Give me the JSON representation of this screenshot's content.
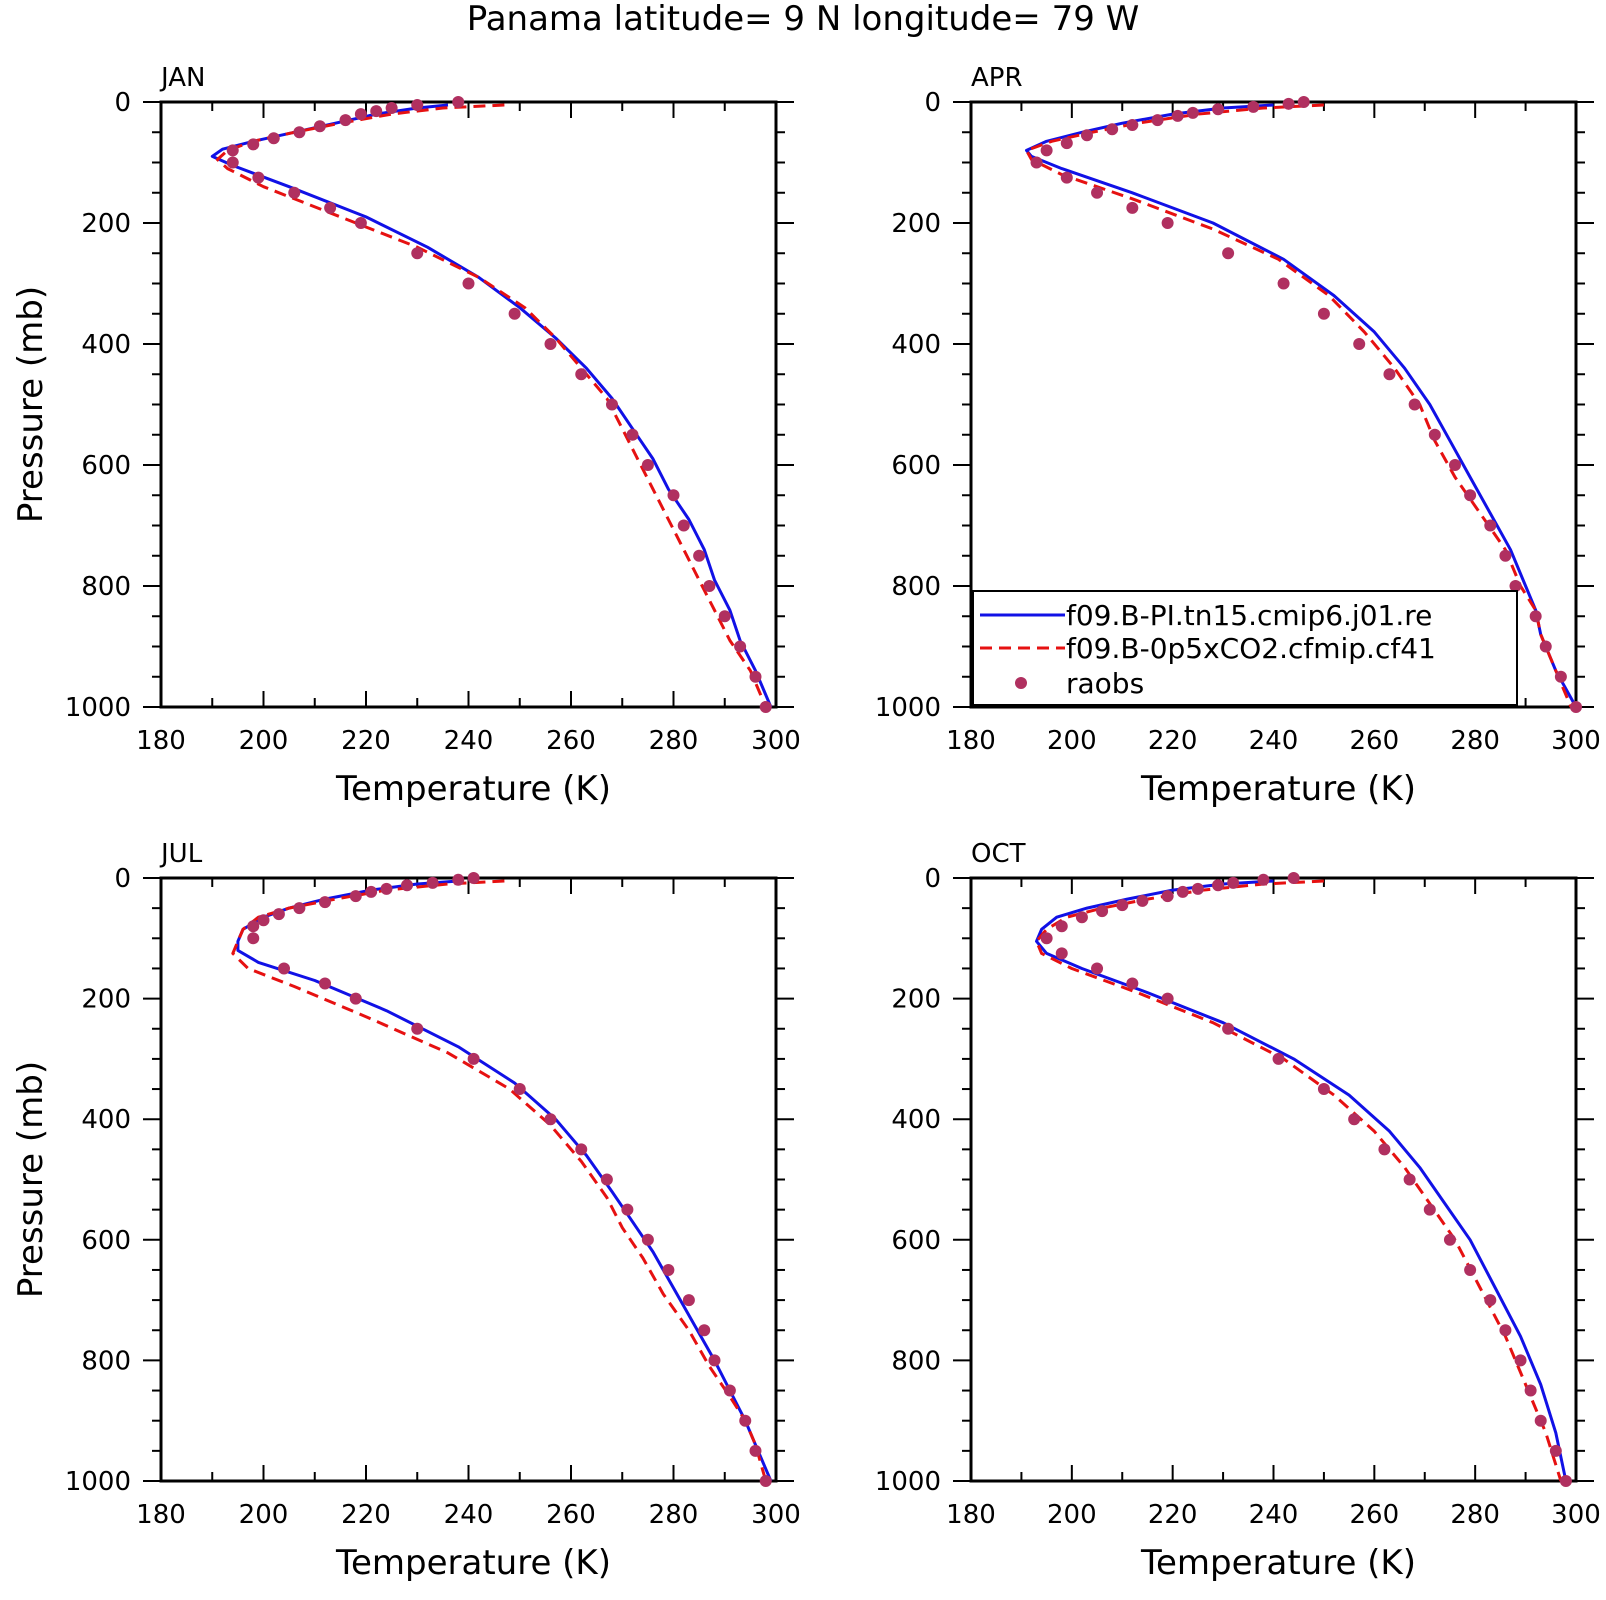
{
  "title": "Panama  latitude= 9 N longitude= 79 W",
  "colors": {
    "model1": "#1111e6",
    "model2": "#e61111",
    "raobs": "#b03060",
    "axis": "#000000"
  },
  "legend": {
    "placement": "lower-left of APR panel",
    "entries": [
      {
        "label": "f09.B-PI.tn15.cmip6.j01.re",
        "style": "solid blue line"
      },
      {
        "label": "f09.B-0p5xCO2.cfmip.cf41",
        "style": "dashed red line"
      },
      {
        "label": "raobs",
        "style": "filled circle"
      }
    ]
  },
  "chart_data": [
    {
      "type": "line",
      "panel": "JAN",
      "xlabel": "Temperature (K)",
      "ylabel": "Pressure (mb)",
      "xlim": [
        180,
        300
      ],
      "ylim": [
        1000,
        0
      ],
      "xticks": [
        180,
        200,
        220,
        240,
        260,
        280,
        300
      ],
      "yticks": [
        0,
        200,
        400,
        600,
        800,
        1000
      ],
      "series": [
        {
          "name": "f09.B-PI.tn15.cmip6.j01.re",
          "x": [
            236,
            230,
            222,
            214,
            206,
            198,
            192,
            190,
            194,
            205,
            220,
            232,
            242,
            250,
            257,
            263,
            268,
            272,
            276,
            279,
            283,
            286,
            288,
            291,
            293,
            296,
            299
          ],
          "y": [
            5,
            10,
            20,
            35,
            50,
            65,
            78,
            90,
            105,
            140,
            190,
            240,
            290,
            340,
            390,
            440,
            490,
            540,
            590,
            640,
            690,
            740,
            790,
            840,
            890,
            940,
            1000
          ]
        },
        {
          "name": "f09.B-0p5xCO2.cfmip.cf41",
          "x": [
            247,
            235,
            225,
            215,
            206,
            198,
            193,
            191,
            193,
            200,
            215,
            230,
            242,
            251,
            257,
            262,
            267,
            270,
            273,
            276,
            279,
            282,
            285,
            288,
            291,
            295,
            298
          ],
          "y": [
            5,
            10,
            20,
            35,
            50,
            65,
            80,
            95,
            110,
            140,
            190,
            240,
            290,
            340,
            390,
            440,
            490,
            540,
            590,
            640,
            690,
            740,
            790,
            840,
            890,
            940,
            1000
          ]
        },
        {
          "name": "raobs",
          "x": [
            238,
            230,
            225,
            222,
            219,
            216,
            211,
            207,
            202,
            198,
            194,
            194,
            199,
            206,
            213,
            219,
            230,
            240,
            249,
            256,
            262,
            268,
            272,
            275,
            280,
            282,
            285,
            287,
            290,
            293,
            296,
            298
          ],
          "y": [
            0,
            5,
            10,
            15,
            20,
            30,
            40,
            50,
            60,
            70,
            80,
            100,
            125,
            150,
            175,
            200,
            250,
            300,
            350,
            400,
            450,
            500,
            550,
            600,
            650,
            700,
            750,
            800,
            850,
            900,
            950,
            1000
          ]
        }
      ]
    },
    {
      "type": "line",
      "panel": "APR",
      "xlabel": "Temperature (K)",
      "ylabel": "",
      "xlim": [
        180,
        300
      ],
      "ylim": [
        1000,
        0
      ],
      "xticks": [
        180,
        200,
        220,
        240,
        260,
        280,
        300
      ],
      "yticks": [
        0,
        200,
        400,
        600,
        800,
        1000
      ],
      "series": [
        {
          "name": "f09.B-PI.tn15.cmip6.j01.re",
          "x": [
            240,
            230,
            220,
            210,
            202,
            195,
            191,
            192,
            198,
            212,
            228,
            242,
            252,
            260,
            266,
            271,
            275,
            279,
            283,
            287,
            290,
            292,
            293,
            296,
            300
          ],
          "y": [
            5,
            10,
            20,
            35,
            50,
            65,
            80,
            90,
            110,
            150,
            200,
            260,
            320,
            380,
            440,
            500,
            560,
            620,
            680,
            740,
            800,
            840,
            880,
            940,
            1000
          ]
        },
        {
          "name": "f09.B-0p5xCO2.cfmip.cf41",
          "x": [
            250,
            238,
            225,
            213,
            204,
            196,
            191,
            192,
            198,
            212,
            228,
            241,
            251,
            258,
            264,
            269,
            272,
            276,
            281,
            286,
            289,
            292,
            293,
            296,
            299
          ],
          "y": [
            5,
            10,
            20,
            35,
            50,
            65,
            80,
            95,
            120,
            160,
            210,
            260,
            320,
            380,
            440,
            500,
            560,
            620,
            680,
            740,
            800,
            840,
            880,
            940,
            1000
          ]
        },
        {
          "name": "raobs",
          "x": [
            246,
            243,
            236,
            229,
            224,
            221,
            217,
            212,
            208,
            203,
            199,
            195,
            193,
            199,
            205,
            212,
            219,
            231,
            242,
            250,
            257,
            263,
            268,
            272,
            276,
            279,
            283,
            286,
            288,
            292,
            294,
            297,
            300
          ],
          "y": [
            0,
            3,
            8,
            12,
            18,
            23,
            30,
            38,
            45,
            55,
            68,
            80,
            100,
            125,
            150,
            175,
            200,
            250,
            300,
            350,
            400,
            450,
            500,
            550,
            600,
            650,
            700,
            750,
            800,
            850,
            900,
            950,
            1000
          ]
        }
      ]
    },
    {
      "type": "line",
      "panel": "JUL",
      "xlabel": "Temperature (K)",
      "ylabel": "Pressure (mb)",
      "xlim": [
        180,
        300
      ],
      "ylim": [
        1000,
        0
      ],
      "xticks": [
        180,
        200,
        220,
        240,
        260,
        280,
        300
      ],
      "yticks": [
        0,
        200,
        400,
        600,
        800,
        1000
      ],
      "series": [
        {
          "name": "f09.B-PI.tn15.cmip6.j01.re",
          "x": [
            238,
            230,
            221,
            212,
            205,
            200,
            196,
            195,
            195,
            199,
            210,
            224,
            238,
            249,
            257,
            263,
            268,
            272,
            276,
            280,
            284,
            288,
            291,
            294,
            296,
            299
          ],
          "y": [
            5,
            10,
            20,
            35,
            50,
            65,
            85,
            105,
            120,
            140,
            170,
            220,
            280,
            340,
            400,
            460,
            520,
            570,
            620,
            680,
            740,
            800,
            850,
            900,
            940,
            1000
          ]
        },
        {
          "name": "f09.B-0p5xCO2.cfmip.cf41",
          "x": [
            247,
            236,
            224,
            214,
            205,
            199,
            196,
            195,
            194,
            197,
            206,
            220,
            236,
            248,
            256,
            262,
            267,
            270,
            274,
            278,
            283,
            287,
            291,
            294,
            296,
            298
          ],
          "y": [
            5,
            10,
            20,
            35,
            50,
            65,
            85,
            105,
            125,
            150,
            180,
            230,
            290,
            350,
            410,
            470,
            530,
            580,
            630,
            690,
            750,
            810,
            860,
            900,
            940,
            1000
          ]
        },
        {
          "name": "raobs",
          "x": [
            241,
            238,
            233,
            228,
            224,
            221,
            218,
            212,
            207,
            203,
            200,
            198,
            198,
            204,
            212,
            218,
            230,
            241,
            250,
            256,
            262,
            267,
            271,
            275,
            279,
            283,
            286,
            288,
            291,
            294,
            296,
            298
          ],
          "y": [
            0,
            3,
            8,
            12,
            18,
            23,
            30,
            40,
            50,
            60,
            70,
            80,
            100,
            150,
            175,
            200,
            250,
            300,
            350,
            400,
            450,
            500,
            550,
            600,
            650,
            700,
            750,
            800,
            850,
            900,
            950,
            1000
          ]
        }
      ]
    },
    {
      "type": "line",
      "panel": "OCT",
      "xlabel": "Temperature (K)",
      "ylabel": "",
      "xlim": [
        180,
        300
      ],
      "ylim": [
        1000,
        0
      ],
      "xticks": [
        180,
        200,
        220,
        240,
        260,
        280,
        300
      ],
      "yticks": [
        0,
        200,
        400,
        600,
        800,
        1000
      ],
      "series": [
        {
          "name": "f09.B-PI.tn15.cmip6.j01.re",
          "x": [
            240,
            230,
            220,
            211,
            203,
            197,
            194,
            193,
            195,
            202,
            215,
            230,
            244,
            255,
            263,
            269,
            274,
            279,
            284,
            289,
            293,
            296,
            298
          ],
          "y": [
            5,
            10,
            20,
            35,
            50,
            65,
            85,
            105,
            125,
            150,
            190,
            240,
            300,
            360,
            420,
            480,
            540,
            600,
            680,
            760,
            840,
            920,
            1000
          ]
        },
        {
          "name": "f09.B-0p5xCO2.cfmip.cf41",
          "x": [
            250,
            238,
            226,
            215,
            206,
            199,
            195,
            193,
            194,
            200,
            213,
            228,
            242,
            252,
            260,
            266,
            271,
            276,
            281,
            286,
            290,
            294,
            297
          ],
          "y": [
            5,
            10,
            20,
            35,
            50,
            65,
            85,
            105,
            125,
            150,
            190,
            240,
            300,
            360,
            420,
            480,
            540,
            600,
            680,
            760,
            840,
            920,
            1000
          ]
        },
        {
          "name": "raobs",
          "x": [
            244,
            238,
            232,
            229,
            225,
            222,
            219,
            214,
            210,
            206,
            202,
            198,
            195,
            198,
            205,
            212,
            219,
            231,
            241,
            250,
            256,
            262,
            267,
            271,
            275,
            279,
            283,
            286,
            289,
            291,
            293,
            296,
            298
          ],
          "y": [
            0,
            3,
            8,
            12,
            18,
            23,
            30,
            38,
            45,
            55,
            65,
            80,
            100,
            125,
            150,
            175,
            200,
            250,
            300,
            350,
            400,
            450,
            500,
            550,
            600,
            650,
            700,
            750,
            800,
            850,
            900,
            950,
            1000
          ]
        }
      ]
    }
  ]
}
